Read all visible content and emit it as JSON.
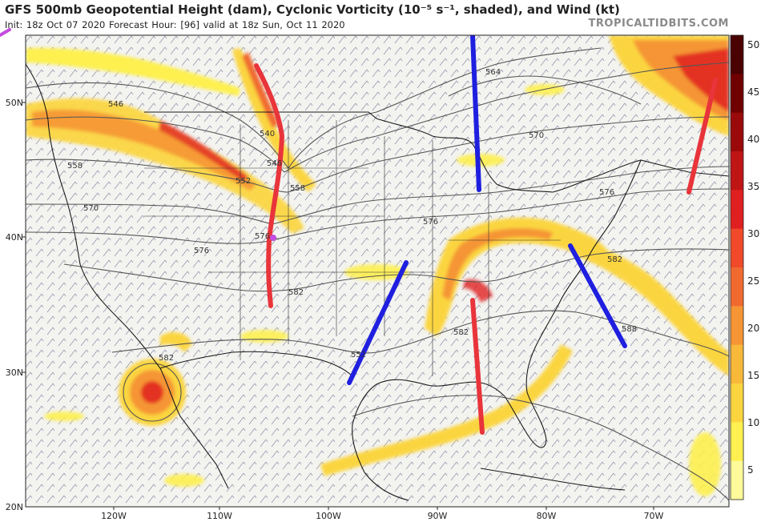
{
  "header": {
    "title": "GFS 500mb Geopotential Height (dam), Cyclonic Vorticity (10⁻⁵ s⁻¹, shaded), and Wind (kt)",
    "subtitle": "Init: 18z Oct 07 2020   Forecast Hour: [96]   valid at 18z Sun, Oct 11 2020",
    "credit": "TROPICALTIDBITS.COM"
  },
  "map": {
    "latitude_labels": [
      "50N",
      "40N",
      "30N",
      "20N"
    ],
    "longitude_labels": [
      "120W",
      "110W",
      "100W",
      "90W",
      "80W",
      "70W"
    ],
    "height_contour_labels": [
      "546",
      "540",
      "546",
      "552",
      "558",
      "558",
      "564",
      "570",
      "570",
      "576",
      "576",
      "576",
      "576",
      "582",
      "582",
      "582",
      "582",
      "588",
      "564"
    ],
    "colors": {
      "background": "#f2f2ef",
      "coast": "#1a1a1a",
      "height_contour": "#555555",
      "wind_barb": "#6a6a8a",
      "trough_annotation": "#e8343a",
      "ridge_annotation": "#1f1fe0"
    }
  },
  "colorbar": {
    "ticks": [
      "50",
      "45",
      "40",
      "35",
      "30",
      "25",
      "20",
      "15",
      "10",
      "5"
    ],
    "colors": [
      "#4a0000",
      "#700000",
      "#9a0a0a",
      "#c01515",
      "#e02020",
      "#f04a2a",
      "#f06a30",
      "#f59535",
      "#f8b83a",
      "#fbd540",
      "#fdf050",
      "#fffa9a"
    ]
  },
  "annotations": {
    "troughs": [
      "trough-pacific-nw",
      "trough-southeast",
      "trough-atlantic-canada"
    ],
    "ridges": [
      "ridge-great-lakes",
      "ridge-texas",
      "ridge-east-coast"
    ],
    "pink_marks": [
      "pink-dot-colorado",
      "pink-arrow-top-left"
    ]
  }
}
